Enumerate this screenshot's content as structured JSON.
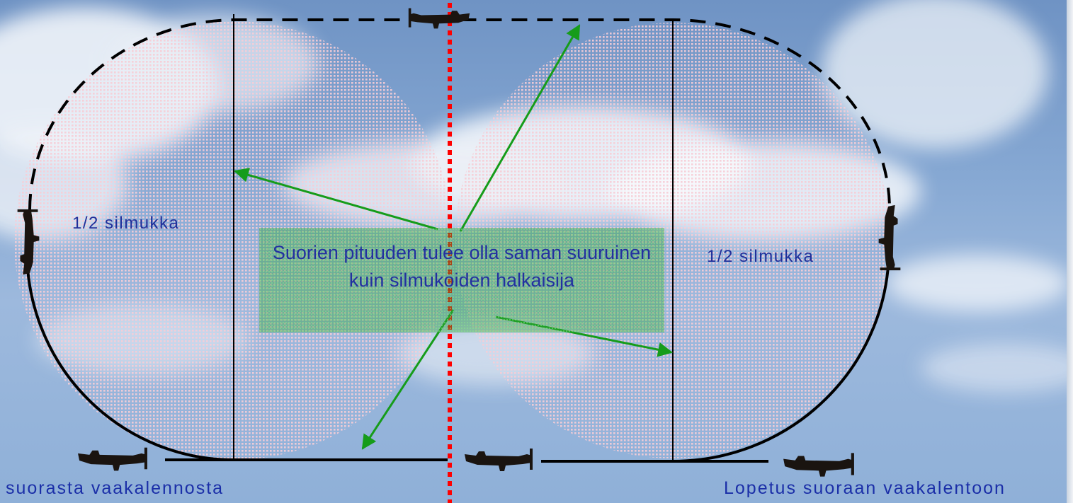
{
  "diagram": {
    "left_loop_label": "1/2 silmukka",
    "right_loop_label": "1/2 silmukka",
    "center_note": "Suorien pituuden tulee olla saman suuruinen kuin silmukoiden halkaisija",
    "bottom_left_label": "suorasta vaakalennosta",
    "bottom_right_label": "Lopetus suoraan vaakalentoon"
  },
  "colors": {
    "sky": "#86a8d3",
    "dotted_fill": "#f3c9d3",
    "path_stroke": "#000000",
    "centerline": "#ff0000",
    "arrows": "#169c1a",
    "note_box": "#3aa544",
    "label_text": "#1f2f9a",
    "aircraft": "#1a1410"
  },
  "icons": [
    "aircraft-icon"
  ]
}
